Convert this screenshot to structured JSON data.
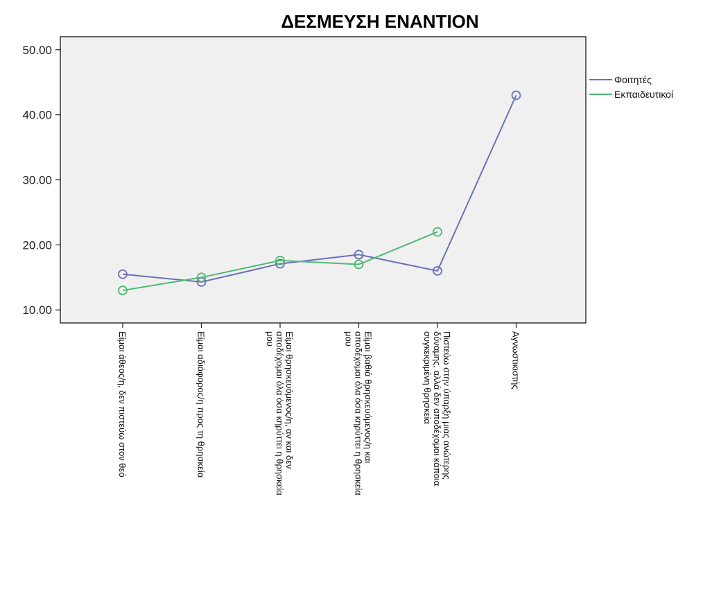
{
  "chart_data": {
    "type": "line",
    "title": "ΔΕΣΜΕΥΣΗ ΕΝΑΝΤΙΟΝ",
    "xlabel": "",
    "ylabel": "",
    "ylim": [
      8,
      52
    ],
    "yticks": [
      "10.00",
      "20.00",
      "30.00",
      "40.00",
      "50.00"
    ],
    "ytick_values": [
      10,
      20,
      30,
      40,
      50
    ],
    "categories": [
      [
        "Είμαι άθεος/η, δεν πιστεύω στον θεό"
      ],
      [
        "Είμαι αδιάφορος/η προς τη θρησκεία"
      ],
      [
        "Είμαι θρησκευόμενος/η, αν και δεν",
        "αποδέχομαι όλα όσα κηρύττει η θρησκεία",
        "μου"
      ],
      [
        "Είμαι βαθιά θρησκευόμενος/η και",
        "αποδέχομαι όλα όσα κηρύττει η θρησκεία",
        "μου"
      ],
      [
        "Πιστεύω στην ύπαρξη μιας ανώτερης",
        "δύναμης, αλλά δεν αποδέχομαι κάποια",
        "συγκεκριμένη θρησκεία"
      ],
      [
        "Αγνωστικιστής"
      ]
    ],
    "series": [
      {
        "name": "Φοιτητές",
        "color": "#6a70b8",
        "values": [
          15.5,
          14.3,
          17.1,
          18.5,
          16.0,
          43.0
        ]
      },
      {
        "name": "Εκπαιδευτικοί",
        "color": "#4cba72",
        "values": [
          13.0,
          15.0,
          17.6,
          17.0,
          22.0,
          null
        ]
      }
    ],
    "legend_position": "right",
    "plot_background": "#f0f0f0",
    "grid": false
  }
}
